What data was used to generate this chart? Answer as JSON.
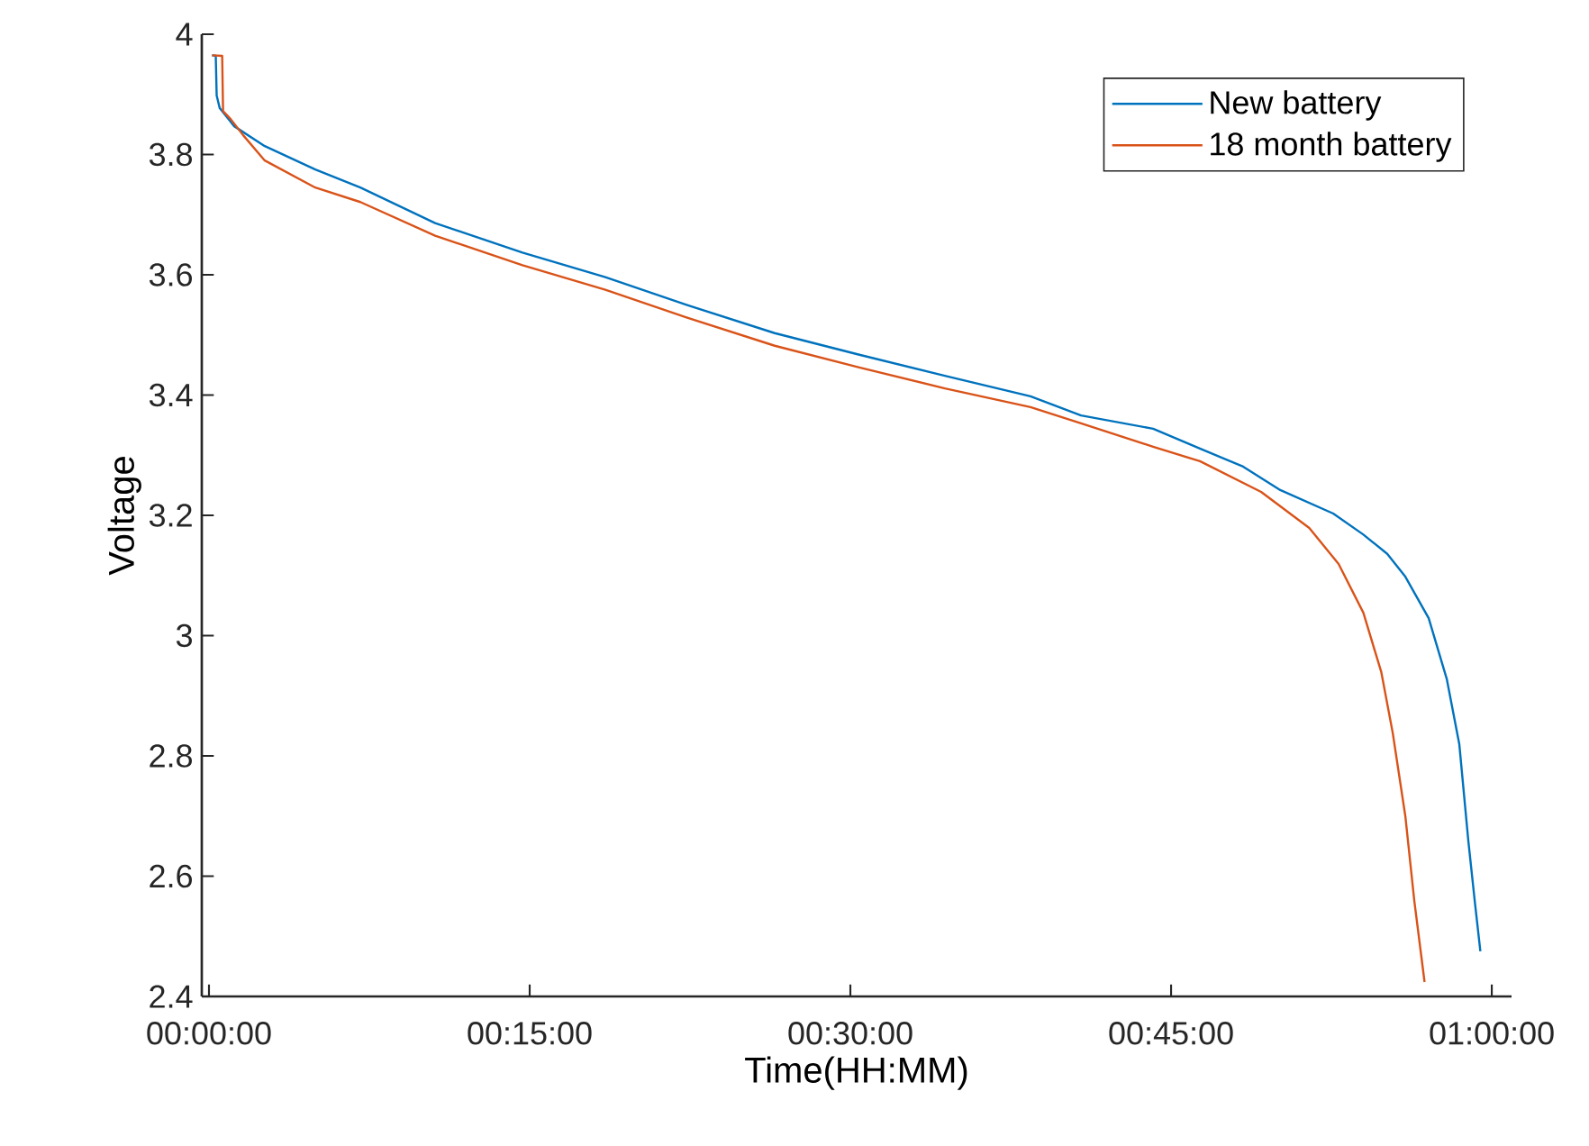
{
  "chart_data": {
    "type": "line",
    "xlabel": "Time(HH:MM)",
    "ylabel": "Voltage",
    "xlim": [
      -0.0056,
      1.0154
    ],
    "ylim": [
      2.4,
      4
    ],
    "xticks": [
      {
        "value": 0,
        "label": "00:00:00"
      },
      {
        "value": 0.25,
        "label": "00:15:00"
      },
      {
        "value": 0.5,
        "label": "00:30:00"
      },
      {
        "value": 0.75,
        "label": "00:45:00"
      },
      {
        "value": 1,
        "label": "01:00:00"
      }
    ],
    "yticks": [
      2.4,
      2.6,
      2.8,
      3,
      3.2,
      3.4,
      3.6,
      3.8,
      4
    ],
    "grid": false,
    "legend": "top right",
    "marker": "none",
    "line_style": "solid",
    "series": [
      {
        "name": "New battery",
        "color": "#0072bd",
        "x": [
          0.0024,
          0.0053,
          0.006,
          0.0084,
          0.0197,
          0.0435,
          0.0829,
          0.118,
          0.1763,
          0.2444,
          0.309,
          0.375,
          0.441,
          0.507,
          0.5737,
          0.6404,
          0.6798,
          0.736,
          0.7725,
          0.8062,
          0.8343,
          0.8764,
          0.8999,
          0.9185,
          0.9326,
          0.9508,
          0.9649,
          0.9747,
          0.9817,
          0.9867,
          0.9911
        ],
        "values": [
          3.965,
          3.964,
          3.898,
          3.877,
          3.847,
          3.814,
          3.775,
          3.745,
          3.686,
          3.637,
          3.596,
          3.548,
          3.503,
          3.467,
          3.432,
          3.398,
          3.366,
          3.344,
          3.311,
          3.281,
          3.243,
          3.203,
          3.168,
          3.136,
          3.098,
          3.029,
          2.928,
          2.819,
          2.659,
          2.559,
          2.475
        ]
      },
      {
        "name": "18 month battery",
        "color": "#d95319",
        "x": [
          0.0024,
          0.0103,
          0.011,
          0.0169,
          0.0267,
          0.0435,
          0.0829,
          0.118,
          0.1763,
          0.2444,
          0.309,
          0.375,
          0.441,
          0.507,
          0.5737,
          0.6404,
          0.6798,
          0.736,
          0.7725,
          0.8202,
          0.8577,
          0.8806,
          0.8999,
          0.9139,
          0.9228,
          0.9326,
          0.9396,
          0.9476
        ],
        "values": [
          3.965,
          3.964,
          3.872,
          3.859,
          3.832,
          3.79,
          3.745,
          3.721,
          3.665,
          3.616,
          3.575,
          3.527,
          3.482,
          3.446,
          3.411,
          3.38,
          3.353,
          3.314,
          3.29,
          3.239,
          3.179,
          3.119,
          3.038,
          2.939,
          2.838,
          2.7,
          2.559,
          2.424
        ]
      }
    ]
  }
}
